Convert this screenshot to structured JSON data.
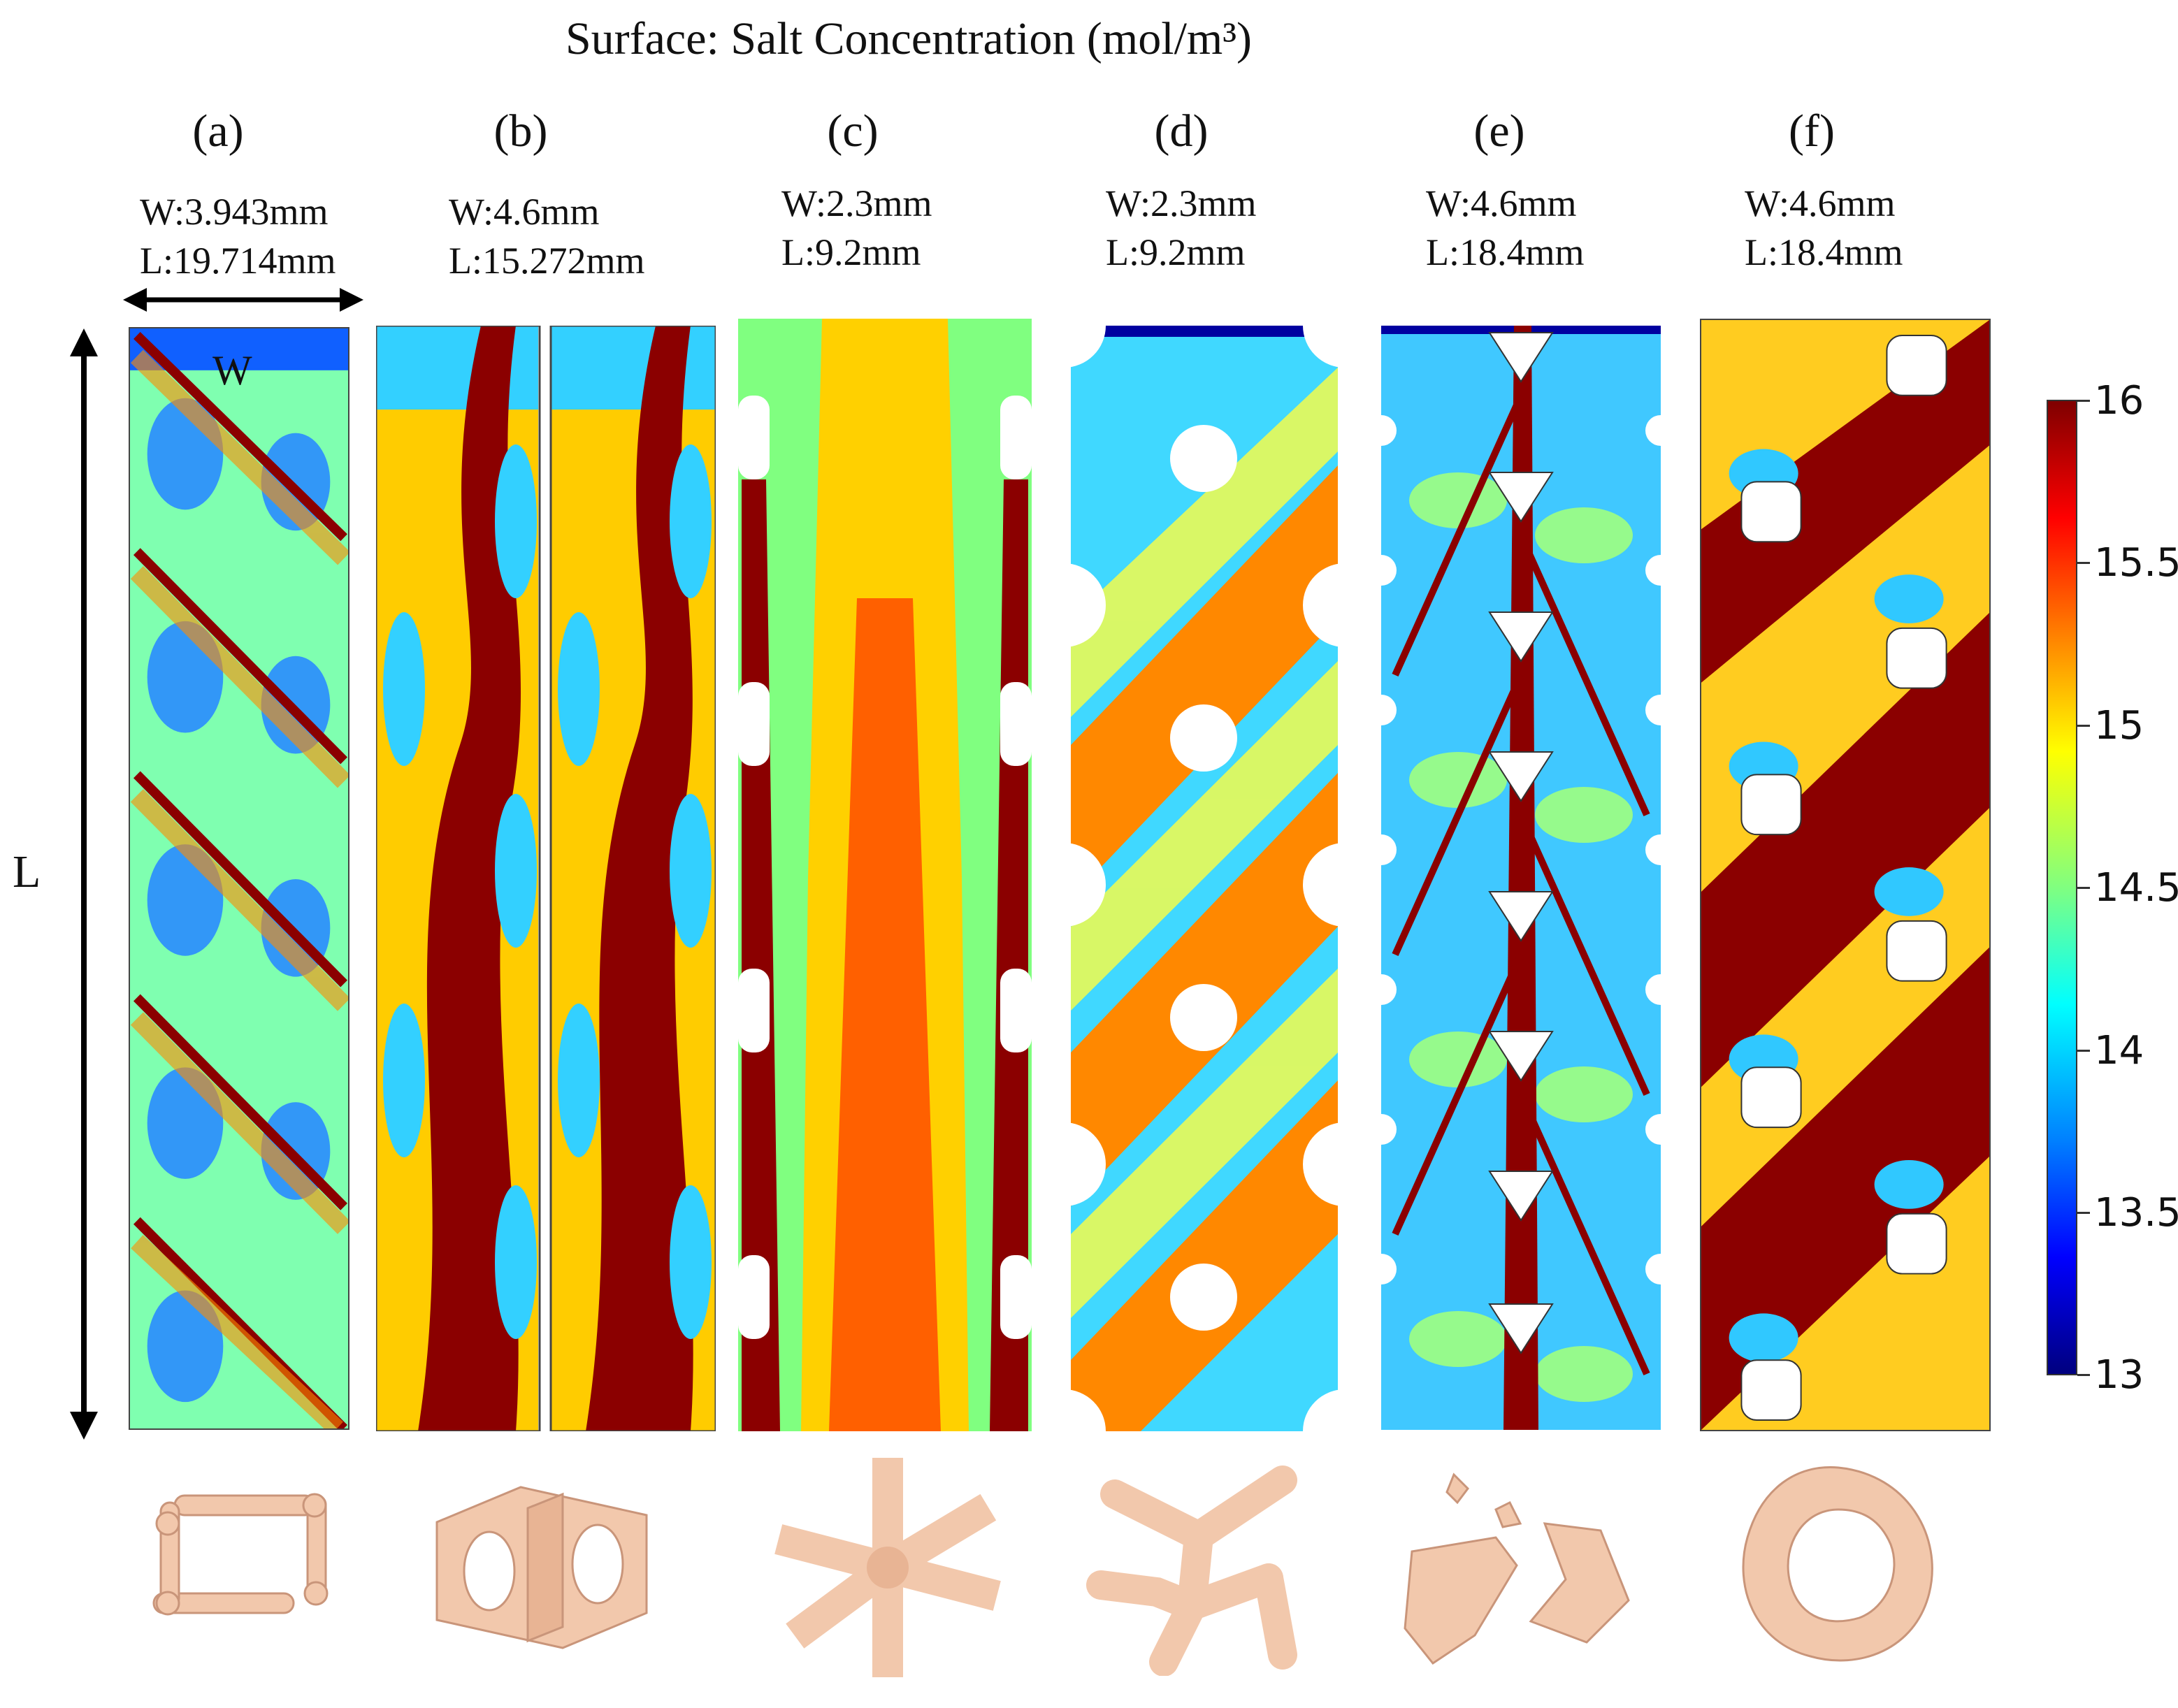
{
  "title": "Surface: Salt Concentration (mol/m³)",
  "panels": [
    {
      "label": "(a)",
      "width": "W:3.943mm",
      "length": "L:19.714mm"
    },
    {
      "label": "(b)",
      "width": "W:4.6mm",
      "length": "L:15.272mm"
    },
    {
      "label": "(c)",
      "width": "W:2.3mm",
      "length": "L:9.2mm"
    },
    {
      "label": "(d)",
      "width": "W:2.3mm",
      "length": "L:9.2mm"
    },
    {
      "label": "(e)",
      "width": "W:4.6mm",
      "length": "L:18.4mm"
    },
    {
      "label": "(f)",
      "width": "W:4.6mm",
      "length": "L:18.4mm"
    }
  ],
  "annotations": {
    "length_symbol": "L",
    "width_symbol": "W"
  },
  "colorbar": {
    "min": 13,
    "max": 16,
    "ticks": [
      "16",
      "15.5",
      "15",
      "14.5",
      "14",
      "13.5",
      "13"
    ],
    "colormap": [
      "#7f0000",
      "#ff0000",
      "#ff8000",
      "#ffff00",
      "#80ff80",
      "#00ffff",
      "#0080ff",
      "#0000ff",
      "#00007f"
    ]
  },
  "colors": {
    "high": "#8b0000",
    "mid": "#ffff00",
    "low": "#1e90ff",
    "model": "#f2c8ac"
  }
}
